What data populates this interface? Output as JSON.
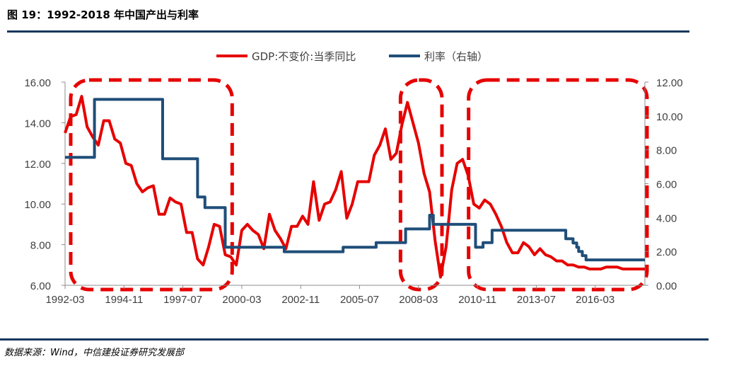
{
  "header": {
    "title": "图 19：1992-2018 年中国产出与利率"
  },
  "footer": {
    "source": "数据来源：Wind，中信建投证券研究发展部"
  },
  "colors": {
    "gdp": "#e60000",
    "rate": "#1f4e79",
    "frame": "#e60000",
    "rule": "#17375e"
  },
  "chart_data": {
    "type": "line",
    "title": "图 19：1992-2018 年中国产出与利率",
    "x_ticks": [
      "1992-03",
      "1994-11",
      "1997-07",
      "2000-03",
      "2002-11",
      "2005-07",
      "2008-03",
      "2010-11",
      "2013-07",
      "2016-03"
    ],
    "y_left": {
      "range": [
        6,
        16
      ],
      "ticks": [
        "6.00",
        "8.00",
        "10.00",
        "12.00",
        "14.00",
        "16.00"
      ]
    },
    "y_right": {
      "range": [
        0,
        12
      ],
      "ticks": [
        "0.00",
        "2.00",
        "4.00",
        "6.00",
        "8.00",
        "10.00",
        "12.00"
      ]
    },
    "legend_position": "top-center",
    "grid": false,
    "series": [
      {
        "name": "GDP:不变价:当季同比",
        "axis": "left",
        "x": [
          "1992-03",
          "1992-06",
          "1992-09",
          "1992-12",
          "1993-03",
          "1993-06",
          "1993-09",
          "1993-12",
          "1994-03",
          "1994-06",
          "1994-09",
          "1994-12",
          "1995-03",
          "1995-06",
          "1995-09",
          "1995-12",
          "1996-03",
          "1996-06",
          "1996-09",
          "1996-12",
          "1997-03",
          "1997-06",
          "1997-09",
          "1997-12",
          "1998-03",
          "1998-06",
          "1998-09",
          "1998-12",
          "1999-03",
          "1999-06",
          "1999-09",
          "1999-12",
          "2000-03",
          "2000-06",
          "2000-09",
          "2000-12",
          "2001-03",
          "2001-06",
          "2001-09",
          "2001-12",
          "2002-03",
          "2002-06",
          "2002-09",
          "2002-12",
          "2003-03",
          "2003-06",
          "2003-09",
          "2003-12",
          "2004-03",
          "2004-06",
          "2004-09",
          "2004-12",
          "2005-03",
          "2005-06",
          "2005-09",
          "2005-12",
          "2006-03",
          "2006-06",
          "2006-09",
          "2006-12",
          "2007-03",
          "2007-06",
          "2007-09",
          "2007-12",
          "2008-03",
          "2008-06",
          "2008-09",
          "2008-12",
          "2009-03",
          "2009-06",
          "2009-09",
          "2009-12",
          "2010-03",
          "2010-06",
          "2010-09",
          "2010-12",
          "2011-03",
          "2011-06",
          "2011-09",
          "2011-12",
          "2012-03",
          "2012-06",
          "2012-09",
          "2012-12",
          "2013-03",
          "2013-06",
          "2013-09",
          "2013-12",
          "2014-03",
          "2014-06",
          "2014-09",
          "2014-12",
          "2015-03",
          "2015-06",
          "2015-09",
          "2015-12",
          "2016-03",
          "2016-06",
          "2016-09",
          "2016-12",
          "2017-03",
          "2017-06",
          "2017-09",
          "2017-12",
          "2018-03",
          "2018-06"
        ],
        "values": [
          13.5,
          14.3,
          14.4,
          15.3,
          13.8,
          13.3,
          12.9,
          14.1,
          14.1,
          13.2,
          13.0,
          12.0,
          11.9,
          11.0,
          10.6,
          10.8,
          10.9,
          9.5,
          9.5,
          10.3,
          10.1,
          10.0,
          8.6,
          8.6,
          7.3,
          7.0,
          7.9,
          9.0,
          8.9,
          7.5,
          7.4,
          7.0,
          8.7,
          9.0,
          8.7,
          8.5,
          7.8,
          9.5,
          8.7,
          8.3,
          7.8,
          8.9,
          8.9,
          9.4,
          9.0,
          11.1,
          9.2,
          10.0,
          10.1,
          10.7,
          11.6,
          9.3,
          10.0,
          11.1,
          11.1,
          11.1,
          12.4,
          12.9,
          13.7,
          12.2,
          12.5,
          13.9,
          15.0,
          14.0,
          13.0,
          11.5,
          10.6,
          8.2,
          6.4,
          7.9,
          10.7,
          12.0,
          12.2,
          11.4,
          10.0,
          9.8,
          10.2,
          10.0,
          9.5,
          8.9,
          8.1,
          7.6,
          7.6,
          8.1,
          7.9,
          7.5,
          7.8,
          7.5,
          7.4,
          7.2,
          7.2,
          7.0,
          7.0,
          6.9,
          6.9,
          6.8,
          6.8,
          6.8,
          6.9,
          6.9,
          6.9,
          6.8,
          6.8,
          6.8,
          6.8,
          6.8
        ]
      },
      {
        "name": "利率（右轴）",
        "axis": "right",
        "x": [
          "1992-03",
          "1993-05",
          "1993-07",
          "1995-01",
          "1995-07",
          "1996-05",
          "1996-08",
          "1997-10",
          "1998-03",
          "1998-07",
          "1998-12",
          "1999-06",
          "2002-02",
          "2004-10",
          "2006-04",
          "2006-08",
          "2007-03",
          "2007-08",
          "2007-12",
          "2008-09",
          "2008-11",
          "2008-12",
          "2010-10",
          "2011-02",
          "2011-07",
          "2012-06",
          "2012-07",
          "2014-11",
          "2015-03",
          "2015-05",
          "2015-06",
          "2015-08",
          "2015-10",
          "2018-06"
        ],
        "values": [
          7.56,
          7.56,
          10.98,
          10.98,
          10.98,
          10.98,
          7.47,
          7.47,
          5.22,
          4.59,
          4.59,
          2.25,
          1.98,
          2.25,
          2.52,
          2.52,
          2.52,
          3.33,
          3.33,
          4.14,
          3.6,
          3.6,
          2.25,
          2.52,
          3.25,
          3.25,
          3.25,
          2.75,
          2.5,
          2.25,
          2.0,
          1.75,
          1.5,
          1.5
        ]
      }
    ],
    "annotations": [
      {
        "type": "dashed-rounded-box",
        "from": "1992-03",
        "to": "1999-09"
      },
      {
        "type": "dashed-rounded-box",
        "from": "2007-06",
        "to": "2009-03"
      },
      {
        "type": "dashed-rounded-box",
        "from": "2010-07",
        "to": "2018-06"
      }
    ]
  }
}
